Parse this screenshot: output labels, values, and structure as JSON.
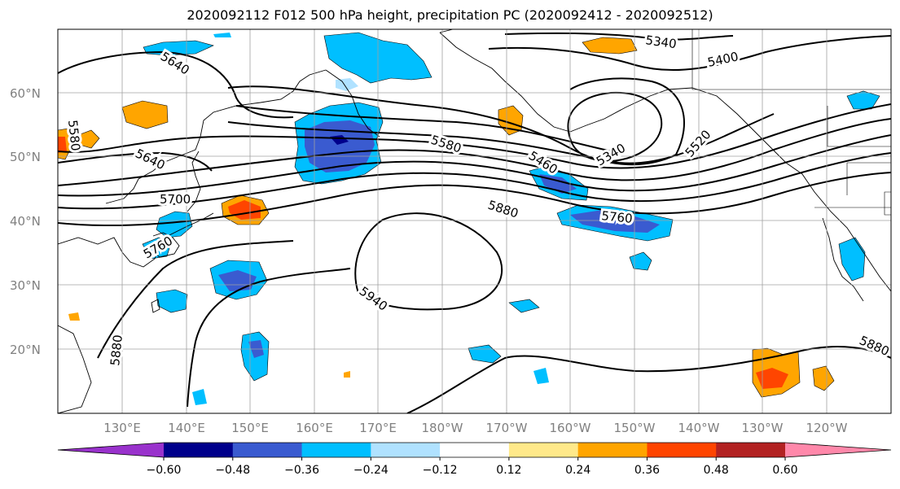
{
  "title": "2020092112 F012 500 hPa height, precipitation PC (2020092412 - 2020092512)",
  "latitudes": [
    {
      "label": "60°N",
      "deg": 60
    },
    {
      "label": "50°N",
      "deg": 50
    },
    {
      "label": "40°N",
      "deg": 40
    },
    {
      "label": "30°N",
      "deg": 30
    },
    {
      "label": "20°N",
      "deg": 20
    }
  ],
  "longitudes": [
    {
      "label": "130°E",
      "deg": 130
    },
    {
      "label": "140°E",
      "deg": 140
    },
    {
      "label": "150°E",
      "deg": 150
    },
    {
      "label": "160°E",
      "deg": 160
    },
    {
      "label": "170°E",
      "deg": 170
    },
    {
      "label": "180°W",
      "deg": 180
    },
    {
      "label": "170°W",
      "deg": 190
    },
    {
      "label": "160°W",
      "deg": 200
    },
    {
      "label": "150°W",
      "deg": 210
    },
    {
      "label": "140°W",
      "deg": 220
    },
    {
      "label": "130°W",
      "deg": 230
    },
    {
      "label": "120°W",
      "deg": 240
    }
  ],
  "contour_labels": [
    "5340",
    "5400",
    "5640",
    "5580",
    "5580",
    "5460",
    "5340",
    "5520",
    "5640",
    "5700",
    "5760",
    "5880",
    "5940",
    "5880",
    "5880",
    "5760"
  ],
  "colorbar": {
    "ticks": [
      "−0.60",
      "−0.48",
      "−0.36",
      "−0.24",
      "−0.12",
      "0.12",
      "0.24",
      "0.36",
      "0.48",
      "0.60"
    ],
    "colors": [
      "#9932cc",
      "#00008b",
      "#3a5bd0",
      "#00bfff",
      "#b0e2ff",
      "#ffffff",
      "#ffe98a",
      "#ffa500",
      "#ff4500",
      "#b22222",
      "#ff88aa"
    ]
  },
  "palette": {
    "blue_dark": "#00008b",
    "blue_mid": "#3a5bd0",
    "blue_light": "#00bfff",
    "blue_pale": "#b0e2ff",
    "yellow": "#ffe98a",
    "orange": "#ffa500",
    "red": "#ff4500"
  }
}
